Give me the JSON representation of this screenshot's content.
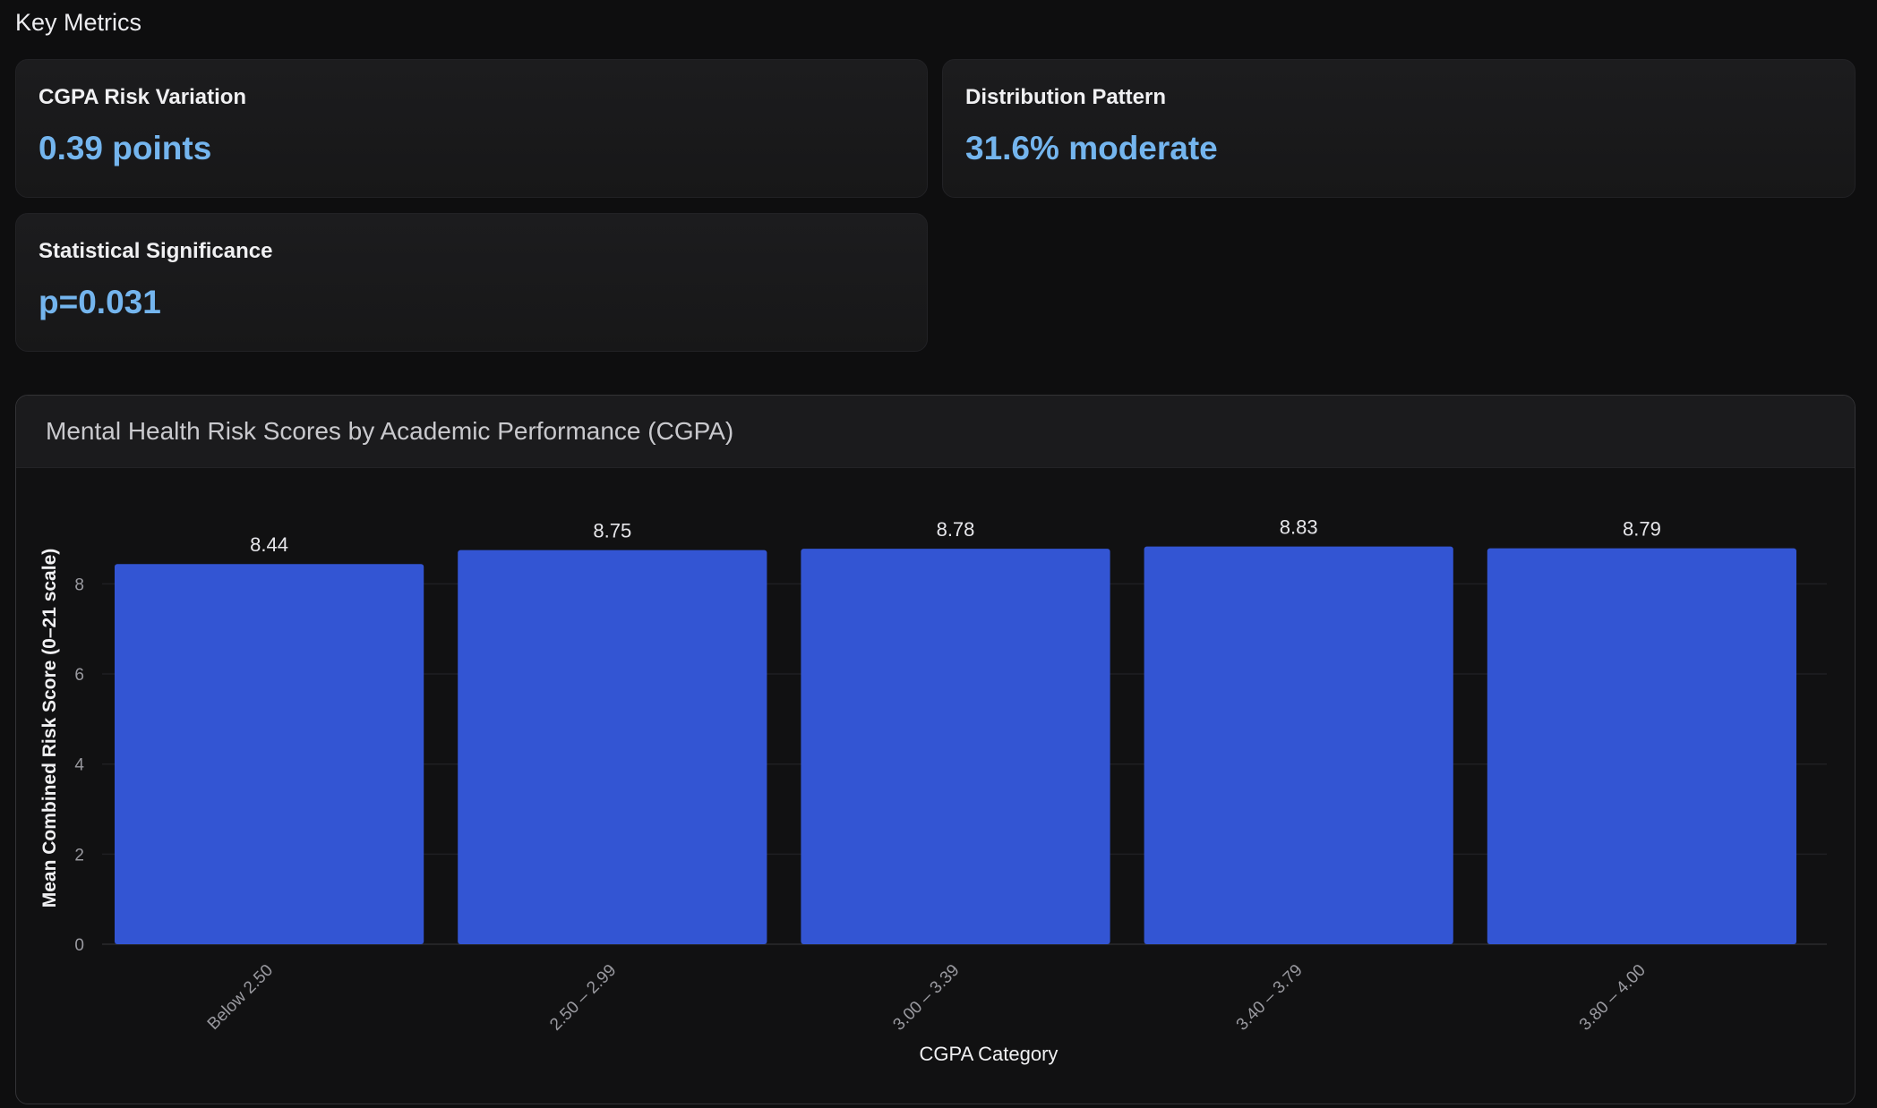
{
  "section": {
    "title": "Key Metrics"
  },
  "metrics": [
    {
      "label": "CGPA Risk Variation",
      "value": "0.39 points"
    },
    {
      "label": "Distribution Pattern",
      "value": "31.6% moderate"
    },
    {
      "label": "Statistical Significance",
      "value": "p=0.031"
    }
  ],
  "colors": {
    "accent_value": "#74b5ee",
    "bar": "#3355d3",
    "background": "#0e0e0f"
  },
  "chart_data": {
    "type": "bar",
    "title": "Mental Health Risk Scores by Academic Performance (CGPA)",
    "xlabel": "CGPA Category",
    "ylabel": "Mean Combined Risk Score (0–21 scale)",
    "categories": [
      "Below 2.50",
      "2.50 – 2.99",
      "3.00 – 3.39",
      "3.40 – 3.79",
      "3.80 – 4.00"
    ],
    "values": [
      8.44,
      8.75,
      8.78,
      8.83,
      8.79
    ],
    "data_labels": [
      "8.44",
      "8.75",
      "8.78",
      "8.83",
      "8.79"
    ],
    "y_ticks": [
      "0",
      "2",
      "4",
      "6",
      "8"
    ],
    "ylim": [
      0,
      9.2
    ],
    "grid": true,
    "legend": "none"
  }
}
